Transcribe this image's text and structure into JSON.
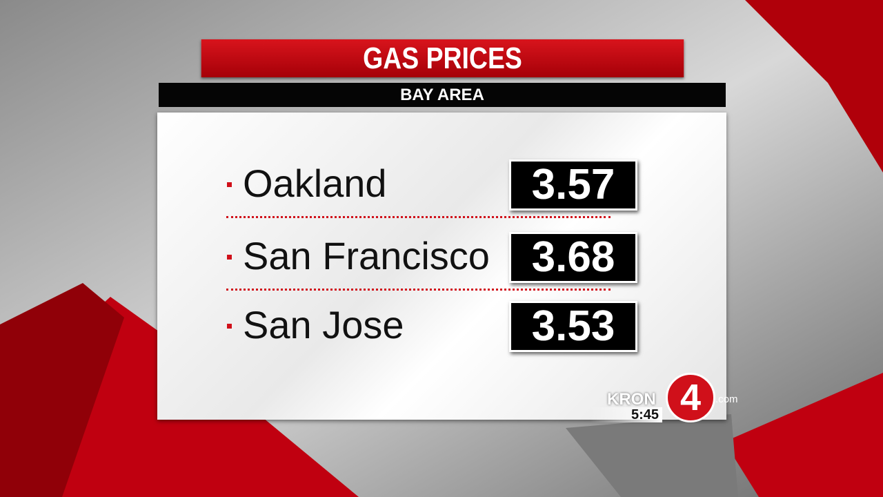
{
  "header": {
    "title": "GAS PRICES",
    "subtitle": "BAY AREA"
  },
  "items": [
    {
      "city": "Oakland",
      "price": "3.57"
    },
    {
      "city": "San Francisco",
      "price": "3.68"
    },
    {
      "city": "San Jose",
      "price": "3.53"
    }
  ],
  "logo": {
    "station": "KRON",
    "channel": "4",
    "suffix": ".com",
    "time": "5:45"
  }
}
